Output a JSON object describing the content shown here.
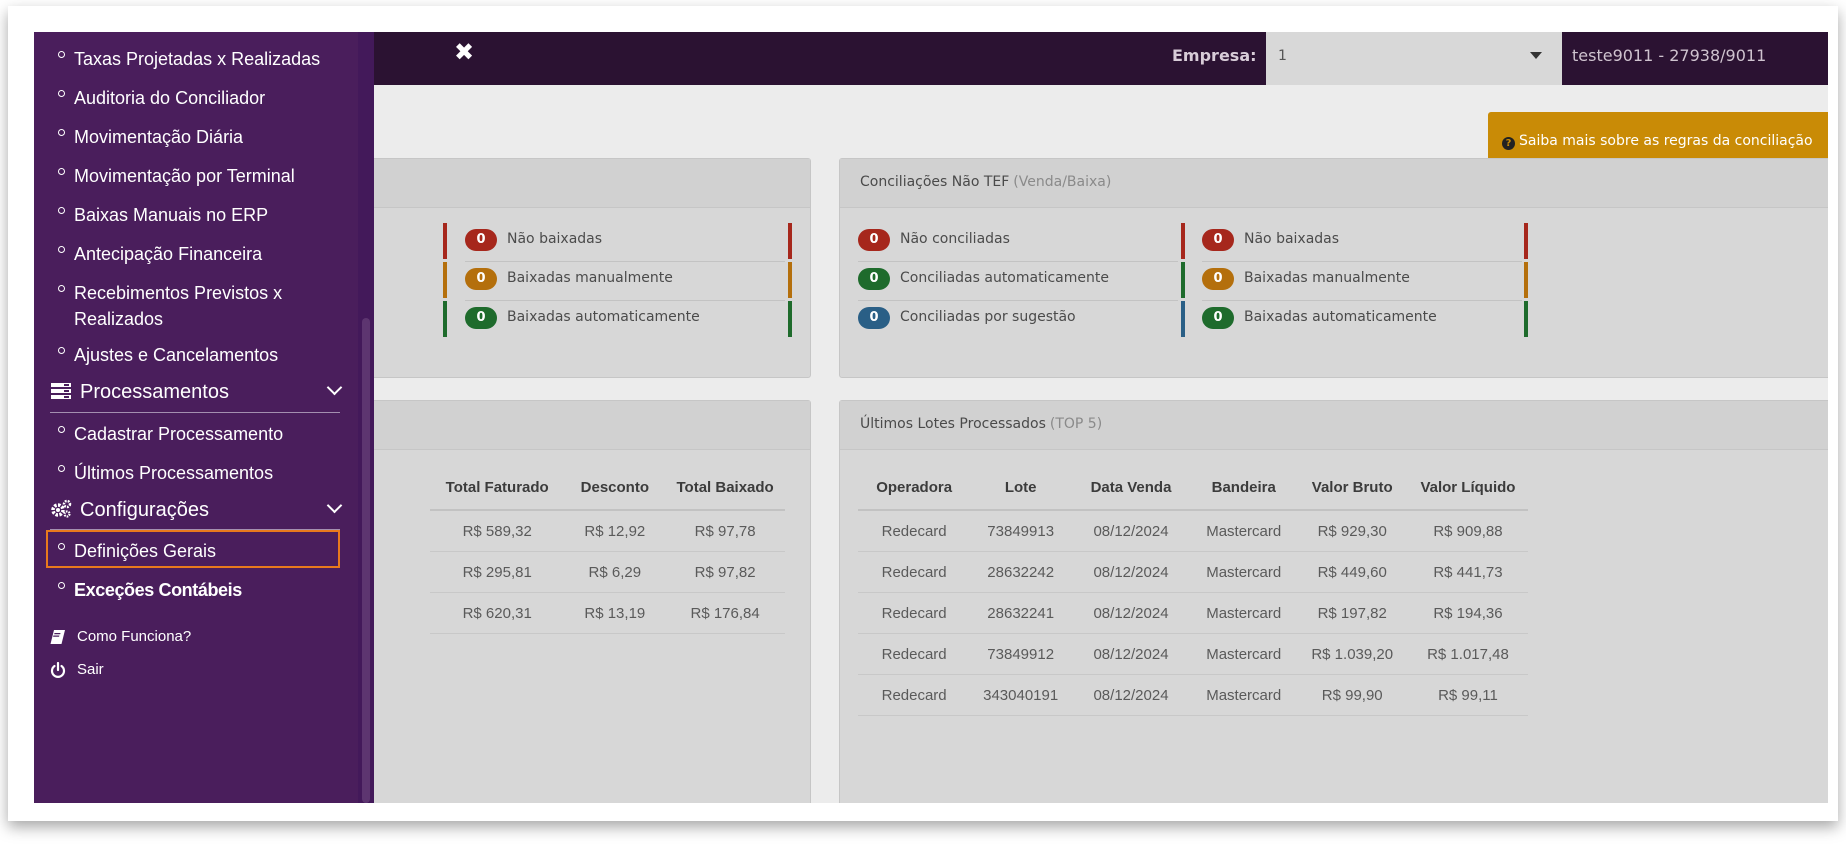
{
  "topbar": {
    "close_symbol": "✖",
    "empresa_label": "Empresa:",
    "empresa_value": "1",
    "user_info": "teste9011 - 27938/9011"
  },
  "help_button": {
    "icon": "question-circle-icon",
    "label": "Saiba mais sobre as regras da conciliação"
  },
  "sidebar": {
    "items_top": [
      "Taxas Projetadas x Realizadas",
      "Auditoria do Conciliador",
      "Movimentação Diária",
      "Movimentação por Terminal",
      "Baixas Manuais no ERP",
      "Antecipação Financeira",
      "Recebimentos Previstos x Realizados",
      "Ajustes e Cancelamentos"
    ],
    "processamentos": {
      "title": "Processamentos",
      "items": [
        "Cadastrar Processamento",
        "Últimos Processamentos"
      ]
    },
    "configuracoes": {
      "title": "Configurações",
      "items": [
        "Definições Gerais",
        "Exceções Contábeis"
      ]
    },
    "footer": [
      {
        "label": "Como Funciona?",
        "icon": "book-icon"
      },
      {
        "label": "Sair",
        "icon": "power-icon"
      }
    ]
  },
  "left_panel_top": {
    "stats": [
      {
        "count": "0",
        "label": "Não baixadas",
        "color": "#a6271c"
      },
      {
        "count": "0",
        "label": "Baixadas manualmente",
        "color": "#b46f0c"
      },
      {
        "count": "0",
        "label": "Baixadas automaticamente",
        "color": "#1e6b2c"
      }
    ]
  },
  "nao_tef_panel": {
    "title": "Conciliações Não TEF",
    "subtitle": "(Venda/Baixa)",
    "left_stats": [
      {
        "count": "0",
        "label": "Não conciliadas",
        "color": "#a6271c"
      },
      {
        "count": "0",
        "label": "Conciliadas automaticamente",
        "color": "#1e6b2c"
      },
      {
        "count": "0",
        "label": "Conciliadas por sugestão",
        "color": "#2a5f86"
      }
    ],
    "right_stats": [
      {
        "count": "0",
        "label": "Não baixadas",
        "color": "#a6271c"
      },
      {
        "count": "0",
        "label": "Baixadas manualmente",
        "color": "#b46f0c"
      },
      {
        "count": "0",
        "label": "Baixadas automaticamente",
        "color": "#1e6b2c"
      }
    ]
  },
  "left_table": {
    "headers": [
      "Total Faturado",
      "Desconto",
      "Total Baixado"
    ],
    "rows": [
      [
        "R$ 589,32",
        "R$ 12,92",
        "R$ 97,78"
      ],
      [
        "R$ 295,81",
        "R$ 6,29",
        "R$ 97,82"
      ],
      [
        "R$ 620,31",
        "R$ 13,19",
        "R$ 176,84"
      ]
    ]
  },
  "lotes_panel": {
    "title": "Últimos Lotes Processados",
    "subtitle": "(TOP 5)",
    "headers": [
      "Operadora",
      "Lote",
      "Data Venda",
      "Bandeira",
      "Valor Bruto",
      "Valor Líquido"
    ],
    "rows": [
      [
        "Redecard",
        "73849913",
        "08/12/2024",
        "Mastercard",
        "R$ 929,30",
        "R$ 909,88"
      ],
      [
        "Redecard",
        "28632242",
        "08/12/2024",
        "Mastercard",
        "R$ 449,60",
        "R$ 441,73"
      ],
      [
        "Redecard",
        "28632241",
        "08/12/2024",
        "Mastercard",
        "R$ 197,82",
        "R$ 194,36"
      ],
      [
        "Redecard",
        "73849912",
        "08/12/2024",
        "Mastercard",
        "R$ 1.039,20",
        "R$ 1.017,48"
      ],
      [
        "Redecard",
        "343040191",
        "08/12/2024",
        "Mastercard",
        "R$ 99,90",
        "R$ 99,11"
      ]
    ]
  },
  "colors": {
    "sidebar_bg": "#4a1e5c",
    "topbar_bg": "#2b1232",
    "help_bg": "#c98b06",
    "highlight_border": "#e87a1d"
  }
}
